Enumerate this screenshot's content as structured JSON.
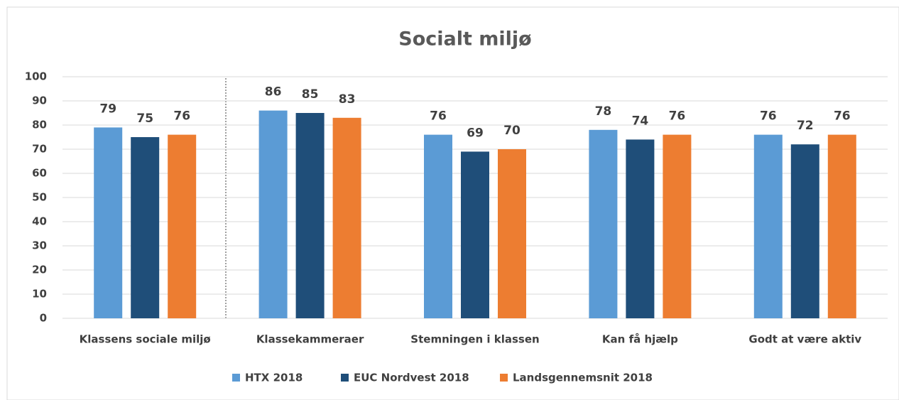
{
  "chart_data": {
    "type": "bar",
    "title": "Socialt miljø",
    "categories": [
      "Klassens sociale miljø",
      "Klassekammeraer",
      "Stemningen i klassen",
      "Kan få hjælp",
      "Godt at være aktiv"
    ],
    "series": [
      {
        "name": "HTX 2018",
        "color": "#5b9bd5",
        "values": [
          79,
          86,
          76,
          78,
          76
        ]
      },
      {
        "name": "EUC Nordvest 2018",
        "color": "#1f4e79",
        "values": [
          75,
          85,
          69,
          74,
          72
        ]
      },
      {
        "name": "Landsgennemsnit 2018",
        "color": "#ed7d31",
        "values": [
          76,
          83,
          70,
          76,
          76
        ]
      }
    ],
    "ylim": [
      0,
      100
    ],
    "yticks": [
      0,
      10,
      20,
      30,
      40,
      50,
      60,
      70,
      80,
      90,
      100
    ],
    "grid": true
  }
}
